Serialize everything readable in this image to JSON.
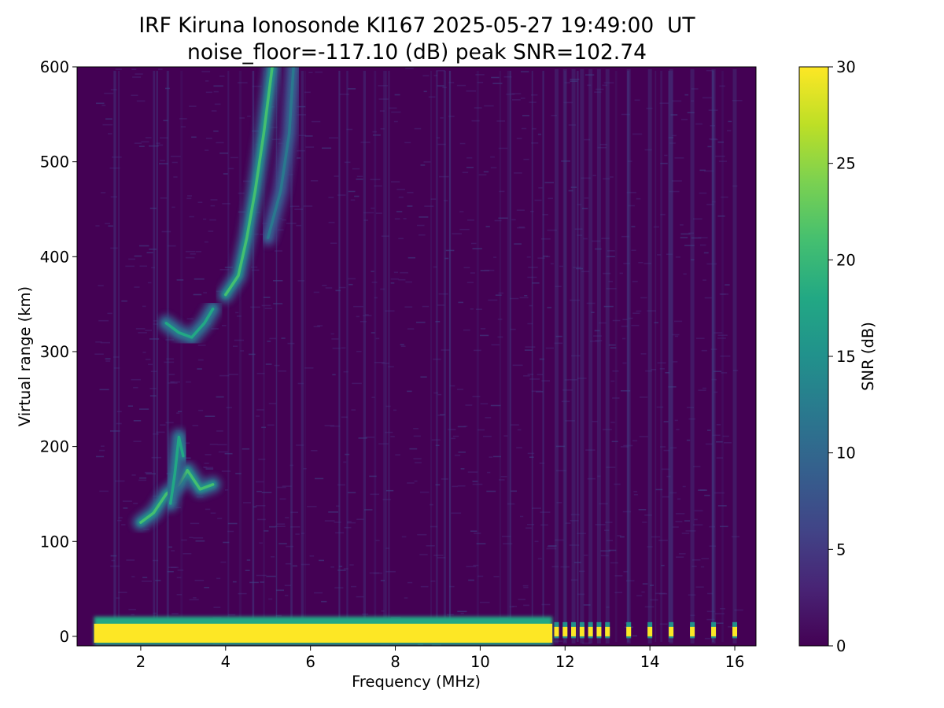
{
  "chart_data": {
    "type": "heatmap",
    "title": "IRF Kiruna Ionosonde KI167 2025-05-27 19:49:00  UT",
    "subtitle": "noise_floor=-117.10 (dB) peak SNR=102.74",
    "xlabel": "Frequency (MHz)",
    "ylabel": "Virtual range (km)",
    "xlim": [
      0.5,
      16.5
    ],
    "ylim": [
      -10,
      600
    ],
    "x_ticks": [
      2,
      4,
      6,
      8,
      10,
      12,
      14,
      16
    ],
    "y_ticks": [
      0,
      100,
      200,
      300,
      400,
      500,
      600
    ],
    "data_x_extent": [
      0.9,
      16.0
    ],
    "grid": false,
    "colormap": "viridis",
    "colorbar": {
      "label": "SNR (dB)",
      "range": [
        0,
        30
      ],
      "ticks": [
        0,
        5,
        10,
        15,
        20,
        25,
        30
      ]
    },
    "features": [
      {
        "name": "ground-echo band",
        "freq": [
          0.9,
          11.7
        ],
        "range": [
          -5,
          15
        ],
        "snr": 30
      },
      {
        "name": "E-layer trace",
        "points": [
          [
            2.0,
            120
          ],
          [
            2.3,
            130
          ],
          [
            2.6,
            150
          ],
          [
            2.9,
            160
          ],
          [
            3.1,
            175
          ],
          [
            3.4,
            155
          ],
          [
            3.7,
            160
          ]
        ],
        "snr": 22
      },
      {
        "name": "E-layer ascending arm",
        "points": [
          [
            2.7,
            140
          ],
          [
            2.8,
            170
          ],
          [
            2.9,
            210
          ],
          [
            3.0,
            190
          ]
        ],
        "snr": 18
      },
      {
        "name": "F-layer cusp",
        "points": [
          [
            2.6,
            330
          ],
          [
            2.9,
            320
          ],
          [
            3.2,
            315
          ],
          [
            3.5,
            330
          ],
          [
            3.7,
            345
          ]
        ],
        "snr": 18
      },
      {
        "name": "F-layer trace",
        "points": [
          [
            4.0,
            360
          ],
          [
            4.3,
            380
          ],
          [
            4.5,
            420
          ],
          [
            4.7,
            470
          ],
          [
            4.9,
            530
          ],
          [
            5.1,
            600
          ]
        ],
        "snr": 20
      },
      {
        "name": "F-layer upper trace",
        "points": [
          [
            5.0,
            420
          ],
          [
            5.3,
            470
          ],
          [
            5.5,
            530
          ],
          [
            5.6,
            600
          ]
        ],
        "snr": 12
      }
    ],
    "discrete_channels_MHz": [
      11.8,
      12.0,
      12.2,
      12.4,
      12.6,
      12.8,
      13.0,
      13.5,
      14.0,
      14.5,
      15.0,
      15.5,
      16.0
    ]
  },
  "colors": {
    "background": "#440154",
    "low": "#440154",
    "high": "#fde725"
  }
}
